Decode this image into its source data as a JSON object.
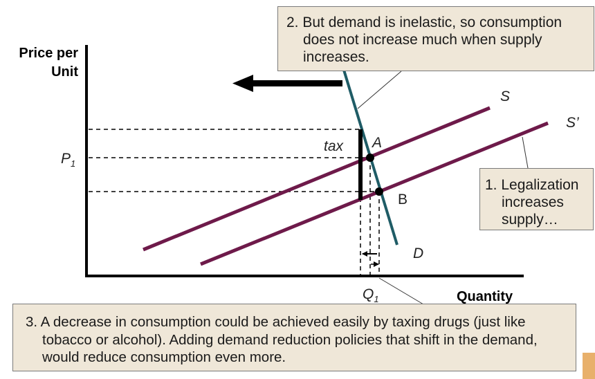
{
  "axes": {
    "y_label_line1": "Price per",
    "y_label_line2": "Unit",
    "x_label": "Quantity"
  },
  "curves": {
    "supply": "S",
    "supply_new": "S’",
    "demand": "D"
  },
  "points": {
    "a": "A",
    "b": "B"
  },
  "marks": {
    "price": "P",
    "price_sub": "1",
    "quantity": "Q",
    "quantity_sub": "1",
    "tax": "tax"
  },
  "callouts": {
    "demand_note": "2. But demand is inelastic, so consumption does not increase much when supply increases.",
    "supply_note": "1. Legalization increases supply…",
    "policy_note": "3. A decrease in consumption could be achieved easily by taxing drugs (just like tobacco or alcohol).  Adding demand reduction policies that shift in the demand, would reduce consumption even more."
  },
  "colors": {
    "supply_curve": "#6e1a4a",
    "demand_curve": "#1f5c66",
    "callout_fill": "#efe7d8",
    "accent_tab": "#e8b06b"
  }
}
